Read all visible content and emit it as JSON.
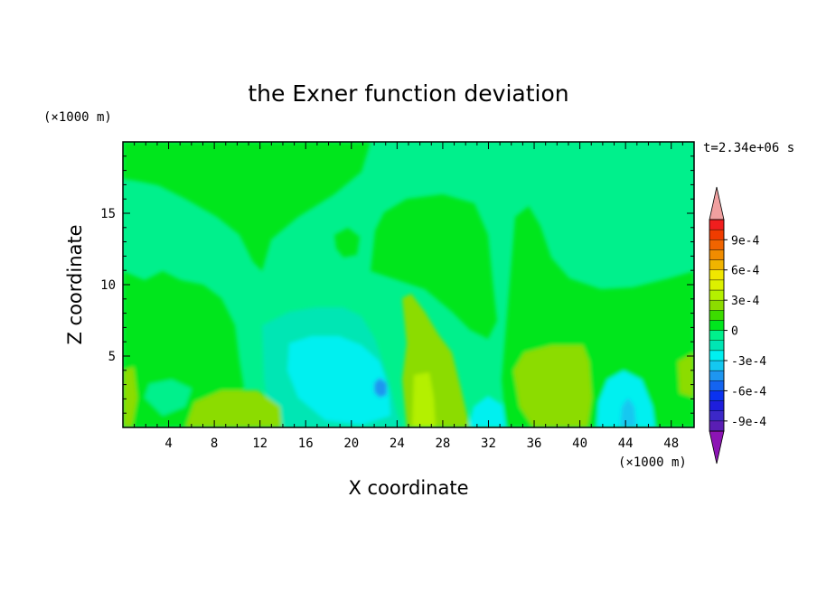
{
  "chart_data": {
    "type": "heatmap",
    "title": "the Exner function deviation",
    "xlabel": "X coordinate",
    "ylabel": "Z coordinate",
    "x_unit": "(×1000 m)",
    "y_unit": "(×1000 m)",
    "time_label": "t=2.34e+06 s",
    "xlim": [
      0,
      50
    ],
    "ylim": [
      0,
      20
    ],
    "x_ticks": [
      4,
      8,
      12,
      16,
      20,
      24,
      28,
      32,
      36,
      40,
      44,
      48
    ],
    "y_ticks": [
      5,
      10,
      15
    ],
    "colorbar": {
      "levels": [
        "-0.0011",
        "-0.001",
        "-0.0009",
        "-0.0008",
        "-0.0007",
        "-0.0006",
        "-0.0005",
        "-0.0004",
        "-0.0003",
        "-0.0002",
        "-0.0001",
        "0",
        "0.0001",
        "0.0002",
        "0.0003",
        "0.0004",
        "0.0005",
        "0.0006",
        "0.0007",
        "0.0008",
        "0.0009",
        "0.001",
        "0.0011"
      ],
      "colors": [
        "#8c14b4",
        "#5a1eb4",
        "#3c28c8",
        "#1e1edc",
        "#0a32f0",
        "#1464f0",
        "#1e96f0",
        "#14c8f0",
        "#00f0f0",
        "#00e6b4",
        "#00f08c",
        "#00e61e",
        "#3cdc00",
        "#8cdc00",
        "#b4f000",
        "#dcf000",
        "#f0e600",
        "#f0b400",
        "#f08c00",
        "#f06400",
        "#f03c00",
        "#f01e1e",
        "#f0a0a0"
      ],
      "tick_labels": [
        "9e-4",
        "6e-4",
        "3e-4",
        "0",
        "-3e-4",
        "-6e-4",
        "-9e-4"
      ]
    },
    "grid": false
  }
}
